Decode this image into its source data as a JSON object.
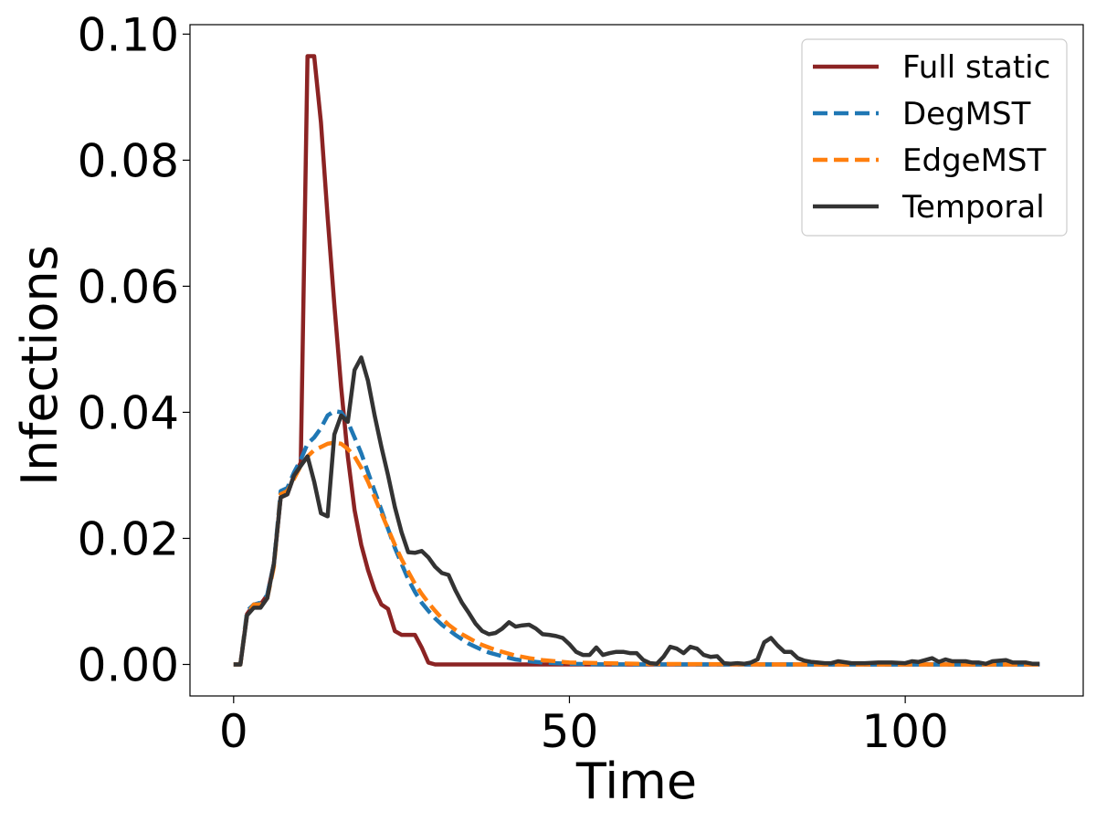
{
  "chart_data": {
    "type": "line",
    "xlabel": "Time",
    "ylabel": "Infections",
    "xlim": [
      -6.5,
      126.5
    ],
    "ylim": [
      -0.005,
      0.1015
    ],
    "xticks": [
      0,
      50,
      100
    ],
    "xtick_labels": [
      "0",
      "50",
      "100"
    ],
    "yticks": [
      0.0,
      0.02,
      0.04,
      0.06,
      0.08,
      0.1
    ],
    "ytick_labels": [
      "0.00",
      "0.02",
      "0.04",
      "0.06",
      "0.08",
      "0.10"
    ],
    "grid": false,
    "legend_position": "top-right",
    "series": [
      {
        "name": "Full static",
        "color": "#8B2323",
        "dash": "solid",
        "x": [
          0,
          1,
          2,
          3,
          4,
          5,
          6,
          7,
          8,
          9,
          10,
          11,
          12,
          13,
          14,
          15,
          16,
          17,
          18,
          19,
          20,
          21,
          22,
          23,
          24,
          25,
          26,
          27,
          28,
          29,
          30,
          31,
          35,
          40,
          50,
          60,
          80,
          100,
          120
        ],
        "y": [
          0,
          0,
          0.008,
          0.0095,
          0.0095,
          0.011,
          0.016,
          0.0265,
          0.027,
          0.03,
          0.032,
          0.0965,
          0.0965,
          0.086,
          0.071,
          0.057,
          0.044,
          0.033,
          0.0245,
          0.019,
          0.015,
          0.0118,
          0.0095,
          0.0088,
          0.0053,
          0.0047,
          0.0047,
          0.0047,
          0.0027,
          0.0003,
          0,
          0,
          0,
          0,
          0,
          0,
          0,
          0,
          0
        ]
      },
      {
        "name": "DegMST",
        "color": "#1F77B4",
        "dash": "dashed",
        "x": [
          0,
          1,
          2,
          3,
          4,
          5,
          6,
          7,
          8,
          9,
          10,
          11,
          12,
          13,
          14,
          15,
          16,
          17,
          18,
          19,
          20,
          21,
          22,
          23,
          24,
          25,
          26,
          27,
          28,
          29,
          30,
          31,
          32,
          33,
          34,
          35,
          36,
          37,
          38,
          39,
          40,
          42,
          44,
          46,
          48,
          50,
          55,
          60,
          80,
          100,
          120
        ],
        "y": [
          0,
          0,
          0.0085,
          0.0095,
          0.0098,
          0.011,
          0.016,
          0.0275,
          0.028,
          0.0305,
          0.0325,
          0.035,
          0.036,
          0.0375,
          0.0395,
          0.0402,
          0.04,
          0.0385,
          0.036,
          0.0335,
          0.0305,
          0.0275,
          0.0245,
          0.0215,
          0.0185,
          0.016,
          0.0135,
          0.0115,
          0.0098,
          0.0085,
          0.0073,
          0.0063,
          0.0055,
          0.0047,
          0.004,
          0.0033,
          0.0028,
          0.0023,
          0.0019,
          0.0016,
          0.0013,
          0.0008,
          0.0005,
          0.0003,
          0.0002,
          0.0001,
          0,
          0,
          0,
          0,
          0
        ]
      },
      {
        "name": "EdgeMST",
        "color": "#FF7F0E",
        "dash": "dashed",
        "x": [
          0,
          1,
          2,
          3,
          4,
          5,
          6,
          7,
          8,
          9,
          10,
          11,
          12,
          13,
          14,
          15,
          16,
          17,
          18,
          19,
          20,
          21,
          22,
          23,
          24,
          25,
          26,
          27,
          28,
          29,
          30,
          31,
          32,
          33,
          34,
          35,
          36,
          37,
          38,
          39,
          40,
          42,
          44,
          46,
          48,
          50,
          55,
          60,
          80,
          100,
          120
        ],
        "y": [
          0,
          0,
          0.008,
          0.0095,
          0.0095,
          0.0105,
          0.0155,
          0.027,
          0.0275,
          0.0295,
          0.0315,
          0.033,
          0.034,
          0.0345,
          0.035,
          0.0352,
          0.035,
          0.0342,
          0.033,
          0.0312,
          0.029,
          0.0265,
          0.024,
          0.0215,
          0.019,
          0.0167,
          0.0147,
          0.0128,
          0.0112,
          0.0098,
          0.0085,
          0.0073,
          0.0063,
          0.0055,
          0.0048,
          0.0042,
          0.0036,
          0.0031,
          0.0027,
          0.0023,
          0.002,
          0.0014,
          0.001,
          0.0007,
          0.0005,
          0.0003,
          0.0002,
          0.0001,
          0,
          0,
          0
        ]
      },
      {
        "name": "Temporal",
        "color": "#333333",
        "dash": "solid",
        "x": [
          0,
          1,
          2,
          3,
          4,
          5,
          6,
          7,
          8,
          9,
          10,
          11,
          12,
          13,
          14,
          15,
          16,
          17,
          18,
          19,
          20,
          21,
          22,
          23,
          24,
          25,
          26,
          27,
          28,
          29,
          30,
          31,
          32,
          33,
          34,
          35,
          36,
          37,
          38,
          39,
          40,
          41,
          42,
          43,
          44,
          45,
          46,
          47,
          48,
          49,
          50,
          51,
          52,
          53,
          54,
          55,
          56,
          57,
          58,
          59,
          60,
          61,
          62,
          63,
          64,
          65,
          66,
          67,
          68,
          69,
          70,
          71,
          72,
          73,
          74,
          75,
          76,
          77,
          78,
          79,
          80,
          81,
          82,
          83,
          84,
          85,
          86,
          87,
          88,
          89,
          90,
          92,
          94,
          96,
          98,
          100,
          101,
          102,
          103,
          104,
          105,
          106,
          107,
          108,
          109,
          110,
          111,
          112,
          113,
          114,
          115,
          116,
          117,
          118,
          119,
          120
        ],
        "y": [
          0,
          0,
          0.0078,
          0.009,
          0.009,
          0.0105,
          0.016,
          0.0265,
          0.027,
          0.03,
          0.0315,
          0.033,
          0.029,
          0.024,
          0.0235,
          0.0365,
          0.0395,
          0.0385,
          0.0467,
          0.0487,
          0.045,
          0.0395,
          0.0345,
          0.03,
          0.025,
          0.021,
          0.0178,
          0.0177,
          0.018,
          0.017,
          0.0155,
          0.0145,
          0.0142,
          0.0118,
          0.0098,
          0.0082,
          0.0065,
          0.0053,
          0.0048,
          0.005,
          0.0057,
          0.0067,
          0.006,
          0.0062,
          0.0063,
          0.0057,
          0.0048,
          0.0047,
          0.0045,
          0.0042,
          0.0032,
          0.002,
          0.0015,
          0.0015,
          0.0027,
          0.0015,
          0.0018,
          0.002,
          0.002,
          0.0018,
          0.0018,
          0.0007,
          0.0002,
          0.0001,
          0.0012,
          0.0028,
          0.0025,
          0.0018,
          0.0028,
          0.0025,
          0.0015,
          0.0012,
          0.0013,
          0.0002,
          0.0001,
          0.0002,
          0.0001,
          0.0003,
          0.0008,
          0.0035,
          0.0042,
          0.003,
          0.002,
          0.002,
          0.001,
          0.0006,
          0.0004,
          0.0003,
          0.0002,
          0.0002,
          0.0005,
          0.0002,
          0.0002,
          0.0003,
          0.0003,
          0.0002,
          0.0005,
          0.0004,
          0.0007,
          0.001,
          0.0004,
          0.0008,
          0.0005,
          0.0005,
          0.0005,
          0.0003,
          0.0003,
          0.0001,
          0.0005,
          0.0006,
          0.0007,
          0.0003,
          0.0003,
          0.0003,
          0.0001,
          0.0001
        ]
      }
    ]
  }
}
